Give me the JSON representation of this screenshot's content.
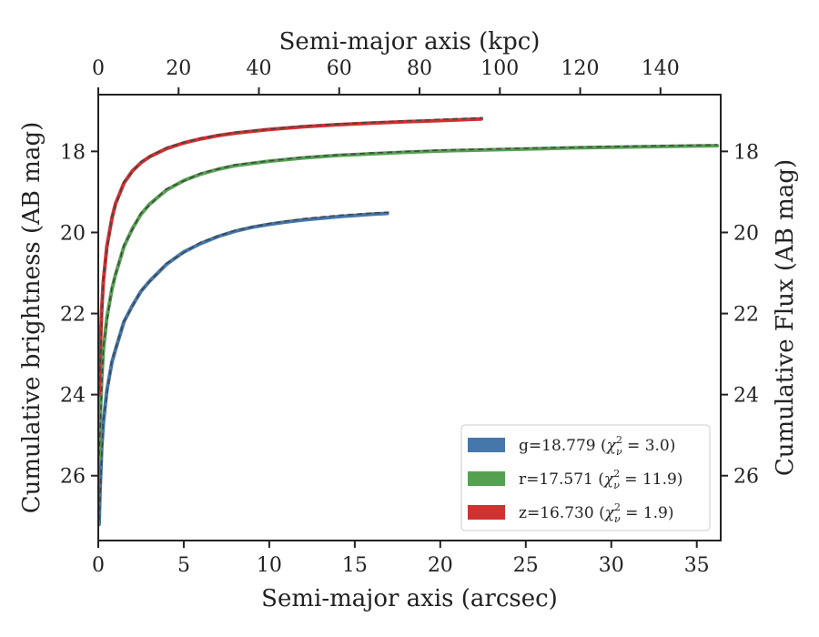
{
  "chart_data": {
    "type": "line",
    "xlabel": "Semi-major axis (arcsec)",
    "xlabel_top": "Semi-major axis (kpc)",
    "ylabel": "Cumulative brightness (AB mag)",
    "ylabel_right": "Cumulative Flux (AB mag)",
    "xlim": [
      0,
      36.4
    ],
    "xlim_top": [
      0,
      155
    ],
    "ylim": [
      27.6,
      16.6
    ],
    "y_inverted": true,
    "xticks": [
      "0",
      "5",
      "10",
      "15",
      "20",
      "25",
      "30",
      "35"
    ],
    "xticks_top": [
      "0",
      "20",
      "40",
      "60",
      "80",
      "100",
      "120",
      "140"
    ],
    "yticks": [
      "18",
      "20",
      "22",
      "24",
      "26"
    ],
    "legend_position": "lower-right",
    "legend": [
      {
        "label": "g=18.779 (χ²ν = 3.0)",
        "text_main": "g=18.779 (",
        "chi": "χ",
        "sup": "2",
        "sub": "ν",
        "rest": " = 3.0)",
        "color": "#4477aa"
      },
      {
        "label": "r=17.571 (χ²ν = 11.9)",
        "text_main": "r=17.571 (",
        "chi": "χ",
        "sup": "2",
        "sub": "ν",
        "rest": " = 11.9)",
        "color": "#55a152"
      },
      {
        "label": "z=16.730 (χ²ν = 1.9)",
        "text_main": "z=16.730 (",
        "chi": "χ",
        "sup": "2",
        "sub": "ν",
        "rest": " = 1.9)",
        "color": "#d03131"
      }
    ],
    "series": [
      {
        "name": "g",
        "color": "#4477aa",
        "x": [
          0.05,
          0.1,
          0.2,
          0.3,
          0.5,
          0.8,
          1.0,
          1.5,
          2.0,
          2.5,
          3.0,
          4.0,
          5.0,
          6.0,
          7.0,
          8.0,
          9.0,
          10.0,
          11.0,
          12.0,
          13.0,
          14.0,
          15.0,
          16.0,
          16.9
        ],
        "y": [
          27.2,
          26.4,
          25.3,
          24.7,
          23.9,
          23.2,
          22.9,
          22.2,
          21.8,
          21.45,
          21.2,
          20.78,
          20.48,
          20.27,
          20.1,
          19.97,
          19.87,
          19.8,
          19.74,
          19.69,
          19.65,
          19.61,
          19.58,
          19.55,
          19.53
        ],
        "fit_x": [
          0.05,
          0.3,
          0.8,
          1.5,
          2.5,
          4.0,
          6.0,
          8.0,
          10.0,
          12.0,
          14.0,
          16.0,
          17.0
        ],
        "fit_y": [
          27.1,
          24.6,
          23.15,
          22.2,
          21.44,
          20.76,
          20.24,
          19.95,
          19.78,
          19.66,
          19.58,
          19.52,
          19.5
        ]
      },
      {
        "name": "r",
        "color": "#55a152",
        "x": [
          0.05,
          0.1,
          0.2,
          0.3,
          0.5,
          0.8,
          1.0,
          1.5,
          2.0,
          2.5,
          3.0,
          4.0,
          5.0,
          6.0,
          7.0,
          8.0,
          10.0,
          12.0,
          14.0,
          16.0,
          18.0,
          20.0,
          22.0,
          25.0,
          28.0,
          31.0,
          34.0,
          36.2
        ],
        "y": [
          25.6,
          24.7,
          23.6,
          22.9,
          22.1,
          21.4,
          21.05,
          20.35,
          19.9,
          19.55,
          19.3,
          18.95,
          18.72,
          18.56,
          18.44,
          18.35,
          18.24,
          18.16,
          18.1,
          18.06,
          18.02,
          17.99,
          17.97,
          17.94,
          17.91,
          17.89,
          17.87,
          17.86
        ],
        "fit_x": [
          0.05,
          0.3,
          0.8,
          1.5,
          2.5,
          4.0,
          6.0,
          8.0,
          12.0,
          16.0,
          20.0,
          25.0,
          30.0,
          36.2
        ],
        "fit_y": [
          25.5,
          22.8,
          21.35,
          20.32,
          19.52,
          18.92,
          18.54,
          18.33,
          18.14,
          18.04,
          17.97,
          17.92,
          17.88,
          17.84
        ]
      },
      {
        "name": "z",
        "color": "#d03131",
        "x": [
          0.05,
          0.1,
          0.2,
          0.3,
          0.5,
          0.8,
          1.0,
          1.5,
          2.0,
          2.5,
          3.0,
          4.0,
          5.0,
          6.0,
          7.0,
          8.0,
          10.0,
          12.0,
          14.0,
          16.0,
          18.0,
          20.0,
          22.4
        ],
        "y": [
          24.0,
          23.0,
          21.9,
          21.2,
          20.35,
          19.65,
          19.3,
          18.78,
          18.48,
          18.28,
          18.13,
          17.93,
          17.79,
          17.69,
          17.61,
          17.55,
          17.46,
          17.39,
          17.34,
          17.3,
          17.27,
          17.24,
          17.2
        ],
        "fit_x": [
          0.05,
          0.3,
          0.8,
          1.5,
          2.5,
          4.0,
          6.0,
          8.0,
          12.0,
          16.0,
          20.0,
          22.5
        ],
        "fit_y": [
          23.9,
          21.1,
          19.6,
          18.75,
          18.25,
          17.9,
          17.67,
          17.53,
          17.37,
          17.28,
          17.21,
          17.17
        ]
      }
    ]
  }
}
